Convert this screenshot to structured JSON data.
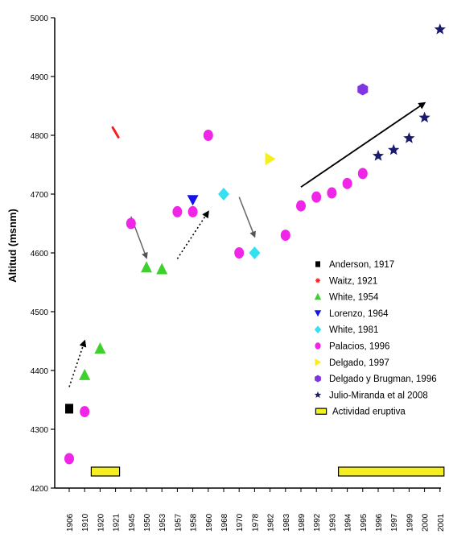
{
  "chart_data": {
    "type": "scatter",
    "title": "",
    "xlabel": "",
    "ylabel": "Altitud (msnm)",
    "ylim": [
      4200,
      5000
    ],
    "yticks": [
      4200,
      4300,
      4400,
      4500,
      4600,
      4700,
      4800,
      4900,
      5000
    ],
    "grid": false,
    "legend_position": "right",
    "categories": [
      "1906",
      "1910",
      "1920",
      "1921",
      "1945",
      "1950",
      "1953",
      "1957",
      "1958",
      "1960",
      "1968",
      "1970",
      "1978",
      "1982",
      "1983",
      "1989",
      "1992",
      "1993",
      "1994",
      "1995",
      "1996",
      "1997",
      "1999",
      "2000",
      "2001"
    ],
    "series": [
      {
        "name": "Anderson, 1917",
        "marker": "square",
        "color": "#000000",
        "points": [
          {
            "x": "1906",
            "y": 4335
          }
        ]
      },
      {
        "name": "Waitz, 1921",
        "marker": "asterisk",
        "color": "#f4211f",
        "points": [
          {
            "x": "1921",
            "y": 4805
          }
        ]
      },
      {
        "name": "White, 1954",
        "marker": "triangle-up",
        "color": "#3cd12b",
        "points": [
          {
            "x": "1910",
            "y": 4392
          },
          {
            "x": "1920",
            "y": 4437
          },
          {
            "x": "1950",
            "y": 4575
          },
          {
            "x": "1953",
            "y": 4572
          }
        ]
      },
      {
        "name": "Lorenzo, 1964",
        "marker": "triangle-down",
        "color": "#1414e6",
        "points": [
          {
            "x": "1958",
            "y": 4690
          }
        ]
      },
      {
        "name": "White, 1981",
        "marker": "diamond",
        "color": "#35e0f0",
        "points": [
          {
            "x": "1968",
            "y": 4700
          },
          {
            "x": "1978",
            "y": 4600
          }
        ]
      },
      {
        "name": "Palacios, 1996",
        "marker": "circle",
        "color": "#f025e8",
        "points": [
          {
            "x": "1906",
            "y": 4250
          },
          {
            "x": "1910",
            "y": 4330
          },
          {
            "x": "1945",
            "y": 4650
          },
          {
            "x": "1957",
            "y": 4670
          },
          {
            "x": "1958",
            "y": 4670
          },
          {
            "x": "1960",
            "y": 4800
          },
          {
            "x": "1970",
            "y": 4600
          },
          {
            "x": "1983",
            "y": 4630
          },
          {
            "x": "1989",
            "y": 4680
          },
          {
            "x": "1992",
            "y": 4695
          },
          {
            "x": "1993",
            "y": 4702
          },
          {
            "x": "1994",
            "y": 4718
          },
          {
            "x": "1995",
            "y": 4735
          }
        ]
      },
      {
        "name": "Delgado, 1997",
        "marker": "triangle-right",
        "color": "#f5ef1f",
        "points": [
          {
            "x": "1982",
            "y": 4760
          }
        ]
      },
      {
        "name": "Delgado y Brugman, 1996",
        "marker": "hexagon",
        "color": "#7f35e0",
        "points": [
          {
            "x": "1995",
            "y": 4878
          }
        ]
      },
      {
        "name": "Julio-Miranda  et al 2008",
        "marker": "star",
        "color": "#1b1b6e",
        "points": [
          {
            "x": "1996",
            "y": 4765
          },
          {
            "x": "1997",
            "y": 4775
          },
          {
            "x": "1999",
            "y": 4795
          },
          {
            "x": "2000",
            "y": 4830
          },
          {
            "x": "2001",
            "y": 4980
          }
        ]
      },
      {
        "name": "Actividad eruptiva",
        "marker": "bar",
        "color": "#f5ef1f",
        "ranges": [
          {
            "from": "1920",
            "to": "1921"
          },
          {
            "from": "1994",
            "to": "2001"
          }
        ]
      }
    ],
    "arrows": [
      {
        "style": "dotted",
        "from": {
          "x": "1906",
          "y": 4372
        },
        "to": {
          "x": "1910",
          "y": 4450
        }
      },
      {
        "style": "solid",
        "from": {
          "x": "1945",
          "y": 4662
        },
        "to": {
          "x": "1950",
          "y": 4592
        }
      },
      {
        "style": "dotted",
        "from": {
          "x": "1957",
          "y": 4590
        },
        "to": {
          "x": "1960",
          "y": 4670
        }
      },
      {
        "style": "solid",
        "from": {
          "x": "1970",
          "y": 4695
        },
        "to": {
          "x": "1978",
          "y": 4628
        }
      },
      {
        "style": "solid",
        "from": {
          "x": "1989",
          "y": 4712
        },
        "to": {
          "x": "2000",
          "y": 4855
        }
      }
    ]
  }
}
